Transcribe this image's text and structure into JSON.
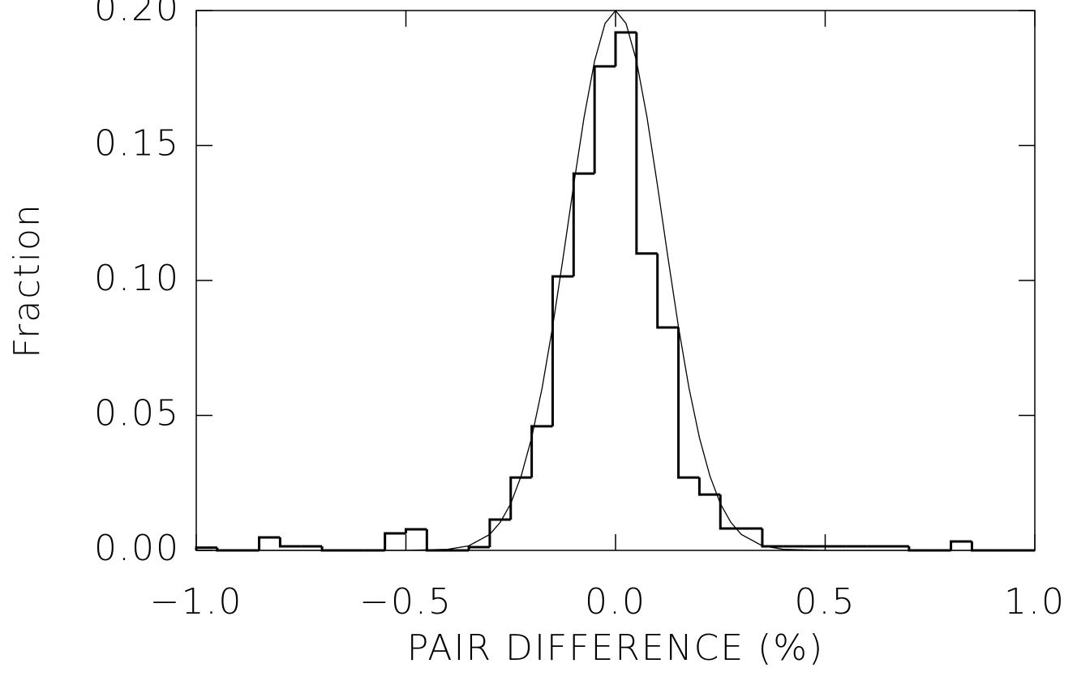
{
  "chart_data": {
    "type": "histogram",
    "xlabel": "PAIR DIFFERENCE (%)",
    "ylabel": "Fraction",
    "bins": [
      -1.0,
      -0.95,
      -0.9,
      -0.85,
      -0.8,
      -0.75,
      -0.7,
      -0.65,
      -0.6,
      -0.55,
      -0.5,
      -0.45,
      -0.4,
      -0.35,
      -0.3,
      -0.25,
      -0.2,
      -0.15,
      -0.1,
      -0.05,
      0,
      0.05,
      0.1,
      0.15,
      0.2,
      0.25,
      0.3,
      0.35,
      0.4,
      0.45,
      0.5,
      0.55,
      0.6,
      0.65,
      0.7,
      0.75,
      0.8,
      0.85,
      0.9,
      0.95,
      1.0
    ],
    "values": [
      0.001,
      0,
      0,
      0.0048,
      0.0015,
      0.0015,
      0,
      0,
      0,
      0.0063,
      0.0078,
      0,
      0,
      0.0012,
      0.0114,
      0.027,
      0.046,
      0.1015,
      0.1396,
      0.1793,
      0.1919,
      0.11,
      0.0826,
      0.027,
      0.0207,
      0.0081,
      0.0081,
      0.0015,
      0.0015,
      0.0015,
      0.0015,
      0.0015,
      0.0015,
      0.0015,
      0,
      0,
      0.0033,
      0,
      0,
      0
    ],
    "color": "#000000",
    "fit": {
      "color": "#000000",
      "x": [
        -1.0,
        -0.5,
        -0.4,
        -0.35,
        -0.3,
        -0.275,
        -0.25,
        -0.225,
        -0.2,
        -0.175,
        -0.15,
        -0.125,
        -0.1,
        -0.075,
        -0.05,
        -0.025,
        0,
        0.025,
        0.05,
        0.075,
        0.1,
        0.125,
        0.15,
        0.175,
        0.2,
        0.225,
        0.25,
        0.275,
        0.3,
        0.35,
        0.4,
        0.5,
        1.0
      ],
      "values": [
        0,
        0,
        0.0004,
        0.0017,
        0.0059,
        0.0104,
        0.0173,
        0.0276,
        0.0418,
        0.0603,
        0.0829,
        0.1085,
        0.1352,
        0.1605,
        0.1813,
        0.1952,
        0.2,
        0.1952,
        0.1813,
        0.1605,
        0.1352,
        0.1085,
        0.0829,
        0.0603,
        0.0418,
        0.0276,
        0.0173,
        0.0104,
        0.0059,
        0.0017,
        0.0004,
        0,
        0
      ]
    },
    "xlim": [
      -1.0,
      1.0
    ],
    "ylim": [
      0,
      0.2
    ],
    "xticks": [
      {
        "value": -1.0,
        "label": "−1.0"
      },
      {
        "value": -0.5,
        "label": "−0.5"
      },
      {
        "value": 0,
        "label": "0.0"
      },
      {
        "value": 0.5,
        "label": "0.5"
      },
      {
        "value": 1.0,
        "label": "1.0"
      }
    ],
    "yticks": [
      {
        "value": 0,
        "label": "0.00"
      },
      {
        "value": 0.05,
        "label": "0.05"
      },
      {
        "value": 0.1,
        "label": "0.10"
      },
      {
        "value": 0.15,
        "label": "0.15"
      },
      {
        "value": 0.2,
        "label": "0.20"
      }
    ]
  }
}
